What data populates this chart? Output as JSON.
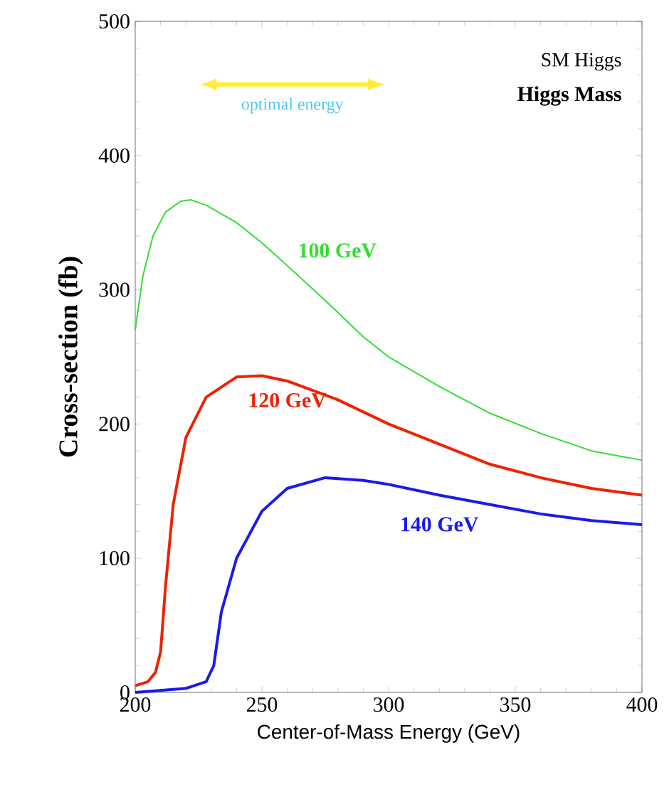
{
  "chart_data": {
    "type": "line",
    "title": "SM Higgs",
    "subtitle": "**Higgs Mass**",
    "xlabel": "Center-of-Mass Energy (GeV)",
    "ylabel": "Cross-section (fb)",
    "xlim": [
      200,
      400
    ],
    "ylim": [
      0,
      500
    ],
    "xticks": [
      200,
      250,
      300,
      350,
      400
    ],
    "yticks": [
      0,
      100,
      200,
      300,
      400,
      500
    ],
    "grid": false,
    "legend": false,
    "marker": "none",
    "line_style": "solid",
    "annotations": [
      "optimal energy"
    ],
    "series": [
      {
        "name": "100 GeV",
        "color": "#33dd33",
        "x": [
          200,
          203,
          207,
          212,
          218,
          222,
          228,
          240,
          250,
          260,
          275,
          290,
          300,
          320,
          340,
          360,
          380,
          400
        ],
        "values": [
          270,
          310,
          340,
          358,
          366,
          367,
          363,
          350,
          335,
          318,
          292,
          265,
          250,
          228,
          208,
          193,
          180,
          173
        ]
      },
      {
        "name": "120 GeV",
        "color": "#ee2200",
        "x": [
          200,
          205,
          208,
          210,
          212,
          215,
          220,
          228,
          240,
          250,
          260,
          280,
          300,
          320,
          340,
          360,
          380,
          400
        ],
        "values": [
          5,
          8,
          15,
          30,
          80,
          140,
          190,
          220,
          235,
          236,
          232,
          218,
          200,
          185,
          170,
          160,
          152,
          147
        ]
      },
      {
        "name": "140 GeV",
        "color": "#1a1aee",
        "x": [
          200,
          220,
          228,
          231,
          234,
          240,
          250,
          260,
          275,
          290,
          300,
          320,
          340,
          360,
          380,
          400
        ],
        "values": [
          0,
          3,
          8,
          20,
          60,
          100,
          135,
          152,
          160,
          158,
          155,
          147,
          140,
          133,
          128,
          125
        ]
      }
    ]
  }
}
